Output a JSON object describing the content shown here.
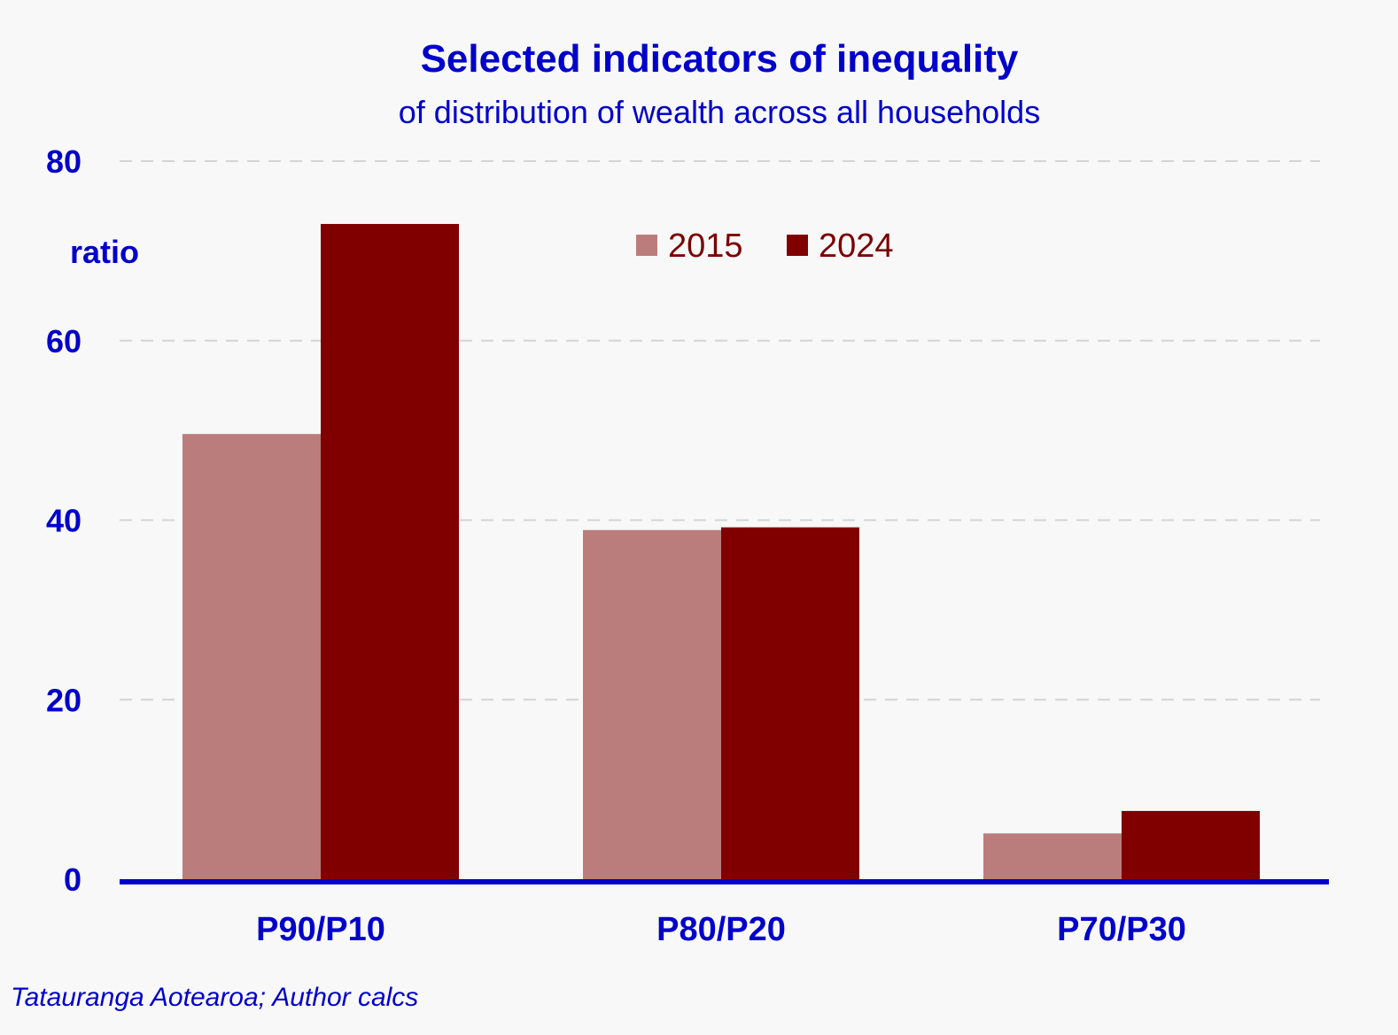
{
  "chart_data": {
    "type": "bar",
    "title": "Selected indicators of inequality",
    "subtitle": "of distribution of wealth across all households",
    "ylabel": "ratio",
    "xlabel": "",
    "ylim": [
      0,
      80
    ],
    "yticks": [
      0,
      20,
      40,
      60,
      80
    ],
    "categories": [
      "P90/P10",
      "P80/P20",
      "P70/P30"
    ],
    "series": [
      {
        "name": "2015",
        "color": "#bb7d7c",
        "values": [
          49.6,
          38.9,
          5.1
        ]
      },
      {
        "name": "2024",
        "color": "#800000",
        "values": [
          73.0,
          39.2,
          7.6
        ]
      }
    ],
    "grid": true,
    "legend_position": "top-center",
    "source": "Tatauranga Aotearoa; Author calcs"
  }
}
